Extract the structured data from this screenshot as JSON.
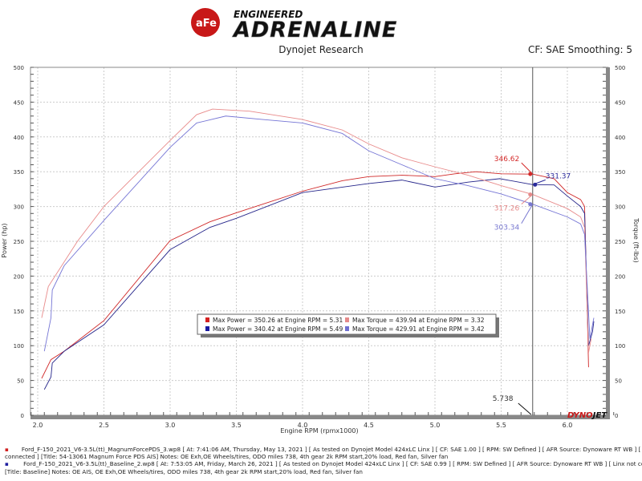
{
  "header": {
    "logo_text": "aFe POWER ENGINEERED ADRENALINE",
    "subtitle": "Dynojet Research",
    "cf": "CF: SAE Smoothing: 5"
  },
  "chart_data": {
    "type": "line",
    "xlabel": "Engine RPM (rpmx1000)",
    "ylabel": "Power (hp)",
    "y2label": "Torque (ft-lbs)",
    "xlim": [
      1.93,
      6.36
    ],
    "ylim": [
      0,
      500
    ],
    "y2lim": [
      0,
      500
    ],
    "xticks": [
      "2.0",
      "2.5",
      "3.0",
      "3.5",
      "4.0",
      "4.5",
      "5.0",
      "5.5",
      "6.0"
    ],
    "yticks": [
      "0",
      "50",
      "100",
      "150",
      "200",
      "250",
      "300",
      "350",
      "400",
      "450",
      "500"
    ],
    "grid": true,
    "cursor": {
      "rpm": 5.738,
      "label": "5.738"
    },
    "cursor_labels": [
      {
        "text": "346.62",
        "value": 346.62,
        "color": "#d42a2a"
      },
      {
        "text": "331.37",
        "value": 331.37,
        "color": "#2a2a9a"
      },
      {
        "text": "317.26",
        "value": 317.26,
        "color": "#e58a8a"
      },
      {
        "text": "303.34",
        "value": 303.34,
        "color": "#7878d0"
      }
    ],
    "legend": [
      {
        "text": "Max Power = 350.26 at Engine RPM = 5.31",
        "color": "#d42020"
      },
      {
        "text": "Max Torque = 439.94 at Engine RPM = 3.32",
        "color": "#e58a8a"
      },
      {
        "text": "Max Power = 340.42 at Engine RPM = 5.49",
        "color": "#1a1aa0"
      },
      {
        "text": "Max Torque = 429.91 at Engine RPM = 3.42",
        "color": "#7070d0"
      }
    ],
    "series": [
      {
        "color": "#d02828",
        "x": [
          2.03,
          2.1,
          2.2,
          2.5,
          3.0,
          3.3,
          3.5,
          4.0,
          4.3,
          4.5,
          4.75,
          5.0,
          5.15,
          5.31,
          5.5,
          5.738,
          5.9,
          6.0,
          6.1,
          6.13,
          6.15,
          6.16
        ],
        "y": [
          53,
          80,
          92,
          136,
          251,
          278,
          291,
          322,
          337,
          343,
          345,
          343,
          347,
          350,
          347,
          346.6,
          340,
          320,
          310,
          300,
          150,
          69
        ]
      },
      {
        "color": "#25258a",
        "x": [
          2.05,
          2.1,
          2.11,
          2.2,
          2.5,
          3.0,
          3.3,
          3.5,
          4.0,
          4.5,
          4.75,
          5.0,
          5.25,
          5.49,
          5.738,
          5.9,
          6.0,
          6.1,
          6.13,
          6.16,
          6.19,
          6.2
        ],
        "y": [
          37,
          55,
          75,
          92,
          130,
          238,
          270,
          283,
          320,
          333,
          338,
          328,
          335,
          340,
          331.4,
          331,
          315,
          300,
          290,
          100,
          120,
          135
        ]
      },
      {
        "color": "#e88a8a",
        "x": [
          2.03,
          2.08,
          2.3,
          2.5,
          3.0,
          3.2,
          3.32,
          3.6,
          4.0,
          4.3,
          4.5,
          4.75,
          5.0,
          5.25,
          5.5,
          5.738,
          6.0,
          6.1,
          6.13,
          6.16,
          6.18
        ],
        "y": [
          140,
          185,
          250,
          300,
          395,
          432,
          440,
          437,
          425,
          410,
          390,
          370,
          357,
          345,
          330,
          317.3,
          297,
          285,
          270,
          90,
          110
        ]
      },
      {
        "color": "#7575d5",
        "x": [
          2.05,
          2.1,
          2.11,
          2.2,
          2.5,
          3.0,
          3.2,
          3.42,
          3.7,
          4.0,
          4.3,
          4.5,
          4.75,
          5.0,
          5.25,
          5.5,
          5.738,
          6.0,
          6.1,
          6.13,
          6.17,
          6.2
        ],
        "y": [
          92,
          140,
          180,
          215,
          280,
          385,
          420,
          430,
          425,
          420,
          405,
          380,
          360,
          340,
          330,
          318,
          303.3,
          285,
          275,
          260,
          110,
          140
        ]
      }
    ]
  },
  "footer": {
    "run1_line1": "Ford_F-150_2021_V6-3.5L(tt)_MagnumForcePDS_3.wp8 [ At: 7:41:06 AM, Thursday, May 13, 2021 ] [ As tested on Dynojet Model 424xLC Linx ] [ CF: SAE 1.00 ] [ RPM: SW Defined ] [ AFR Source: Dynoware RT WB ] [ Linx not",
    "run1_line2": "connected ] [Title: 54-13061 Magnum Force PDS AIS]  Notes: OE Exh,OE Wheels/tires, ODO miles 738, 4th gear 2k RPM start,20% load, Red fan, Silver fan",
    "run2_line1": "Ford_F-150_2021_V6-3.5L(tt)_Baseline_2.wp8 [ At: 7:53:05 AM, Friday, March 26, 2021 ] [ As tested on Dynojet Model 424xLC Linx ] [ CF: SAE 0.99 ] [ RPM: SW Defined ] [ AFR Source: Dynoware RT WB ] [ Linx not connected ]",
    "run2_line2": "[Title: Baseline]  Notes: OE AIS, OE Exh,OE Wheels/tires, ODO miles 738, 4th gear 2k RPM start,20% load, Red fan, Silver fan",
    "brand": "DYNOJET"
  }
}
